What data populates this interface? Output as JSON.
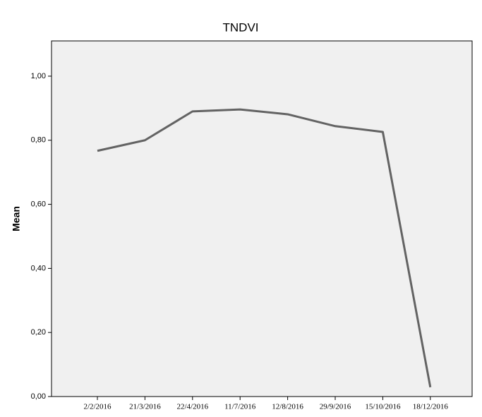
{
  "chart_data": {
    "type": "line",
    "title": "TNDVI",
    "y_label": "Mean",
    "categories": [
      "2/2/2016",
      "21/3/2016",
      "22/4/2016",
      "11/7/2016",
      "12/8/2016",
      "29/9/2016",
      "15/10/2016",
      "18/12/2016"
    ],
    "series": [
      {
        "name": "Mean",
        "color": "#636363",
        "values": [
          0.767,
          0.8,
          0.89,
          0.896,
          0.881,
          0.844,
          0.826,
          0.029
        ]
      }
    ],
    "ylim": [
      0,
      1.11
    ],
    "yticks": [
      {
        "value": 0,
        "label": "0,00"
      },
      {
        "value": 0.2,
        "label": "0,20"
      },
      {
        "value": 0.4,
        "label": "0,40"
      },
      {
        "value": 0.6,
        "label": "0,60"
      },
      {
        "value": 0.8,
        "label": "0,80"
      },
      {
        "value": 1,
        "label": "1,00"
      }
    ],
    "grid": false
  }
}
